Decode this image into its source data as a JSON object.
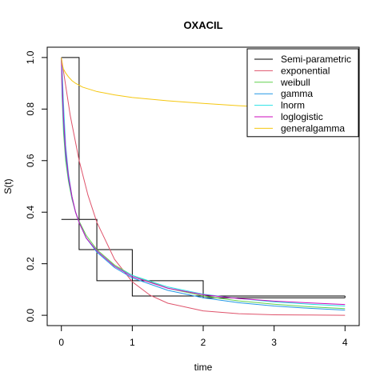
{
  "chart_data": {
    "type": "line",
    "title": "OXACIL",
    "xlabel": "time",
    "ylabel": "S(t)",
    "xlim": [
      -0.2,
      4.2
    ],
    "ylim": [
      -0.04,
      1.04
    ],
    "x_ticks": [
      "0",
      "1",
      "2",
      "3",
      "4"
    ],
    "y_ticks": [
      "0.0",
      "0.2",
      "0.4",
      "0.6",
      "0.8",
      "1.0"
    ],
    "grid": false,
    "legend_position": "top-right",
    "series": [
      {
        "name": "Semi-parametric",
        "color": "#000000",
        "step": true,
        "x": [
          0,
          0.25,
          0.25,
          0.5,
          0.5,
          1,
          1,
          2,
          2,
          4
        ],
        "y_upper": [
          1.0,
          1.0,
          0.372,
          0.372,
          0.255,
          0.255,
          0.134,
          0.134,
          0.075,
          0.075
        ],
        "y_lower": [
          0.372,
          0.372,
          0.255,
          0.255,
          0.134,
          0.134,
          0.075,
          0.075,
          0.068,
          0.068
        ]
      },
      {
        "name": "exponential",
        "color": "#DF536B",
        "x": [
          0,
          0.125,
          0.25,
          0.375,
          0.5,
          0.75,
          1,
          1.25,
          1.5,
          2,
          2.5,
          3,
          3.5,
          4
        ],
        "y": [
          1.0,
          0.775,
          0.601,
          0.466,
          0.361,
          0.217,
          0.13,
          0.078,
          0.047,
          0.017,
          0.006,
          0.002,
          0.001,
          0.0
        ]
      },
      {
        "name": "weibull",
        "color": "#61D04F",
        "x": [
          0,
          0.01,
          0.03,
          0.06,
          0.1,
          0.15,
          0.2,
          0.25,
          0.35,
          0.5,
          0.75,
          1,
          1.5,
          2,
          2.5,
          3,
          3.5,
          4
        ],
        "y": [
          1.0,
          0.85,
          0.71,
          0.6,
          0.52,
          0.45,
          0.4,
          0.365,
          0.31,
          0.255,
          0.195,
          0.155,
          0.105,
          0.075,
          0.056,
          0.043,
          0.033,
          0.026
        ]
      },
      {
        "name": "gamma",
        "color": "#2297E6",
        "x": [
          0,
          0.01,
          0.03,
          0.06,
          0.1,
          0.15,
          0.2,
          0.25,
          0.35,
          0.5,
          0.75,
          1,
          1.5,
          2,
          2.5,
          3,
          3.5,
          4
        ],
        "y": [
          1.0,
          0.87,
          0.74,
          0.62,
          0.53,
          0.455,
          0.4,
          0.36,
          0.3,
          0.245,
          0.185,
          0.145,
          0.097,
          0.068,
          0.049,
          0.036,
          0.027,
          0.02
        ]
      },
      {
        "name": "lnorm",
        "color": "#28E2E5",
        "x": [
          0,
          0.01,
          0.03,
          0.06,
          0.1,
          0.15,
          0.2,
          0.25,
          0.35,
          0.5,
          0.75,
          1,
          1.5,
          2,
          2.5,
          3,
          3.5,
          4
        ],
        "y": [
          1.0,
          0.96,
          0.82,
          0.66,
          0.55,
          0.46,
          0.4,
          0.36,
          0.3,
          0.25,
          0.19,
          0.155,
          0.11,
          0.082,
          0.065,
          0.052,
          0.043,
          0.036
        ]
      },
      {
        "name": "loglogistic",
        "color": "#CD0BBC",
        "x": [
          0,
          0.01,
          0.03,
          0.06,
          0.1,
          0.15,
          0.2,
          0.25,
          0.35,
          0.5,
          0.75,
          1,
          1.5,
          2,
          2.5,
          3,
          3.5,
          4
        ],
        "y": [
          1.0,
          0.91,
          0.77,
          0.64,
          0.54,
          0.46,
          0.4,
          0.36,
          0.3,
          0.25,
          0.19,
          0.15,
          0.105,
          0.08,
          0.065,
          0.055,
          0.048,
          0.042
        ]
      },
      {
        "name": "generalgamma",
        "color": "#F5C710",
        "x": [
          0,
          0.01,
          0.03,
          0.06,
          0.1,
          0.15,
          0.2,
          0.3,
          0.5,
          0.75,
          1,
          1.5,
          2,
          2.5,
          2.95
        ],
        "y": [
          1.0,
          0.975,
          0.955,
          0.94,
          0.925,
          0.91,
          0.9,
          0.885,
          0.868,
          0.855,
          0.845,
          0.832,
          0.822,
          0.813,
          0.807
        ]
      }
    ]
  }
}
